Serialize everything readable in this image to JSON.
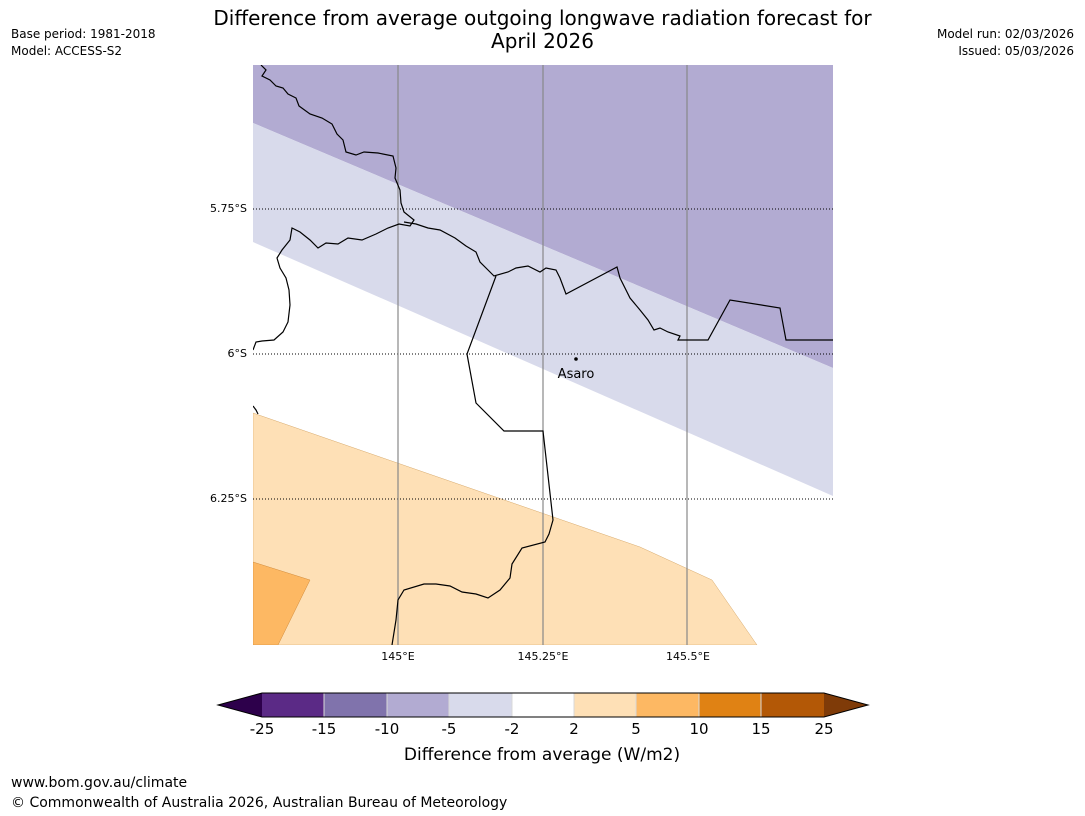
{
  "header": {
    "title_line1": "Difference from average outgoing longwave radiation forecast for",
    "title_line2": "April 2026",
    "base_period": "Base period: 1981-2018",
    "model": "Model: ACCESS-S2",
    "model_run": "Model run: 02/03/2026",
    "issued": "Issued: 05/03/2026"
  },
  "map": {
    "lat_labels": [
      "5.75°S",
      "6°S",
      "6.25°S"
    ],
    "lon_labels": [
      "145°E",
      "145.25°E",
      "145.5°E"
    ],
    "place": {
      "name": "Asaro"
    },
    "colors": {
      "m25_m15": "#5b2a86",
      "m15_m10": "#8073ac",
      "m10_m5": "#b2abd2",
      "m5_m2": "#d8daeb",
      "m2_p2": "#ffffff",
      "p2_p5": "#fee0b6",
      "p5_p10": "#fdb863",
      "p10_p15": "#e08214",
      "p15_p25": "#b35806",
      "under": "#2d004b",
      "over": "#7f3b08"
    }
  },
  "colorbar": {
    "ticks": [
      "-25",
      "-15",
      "-10",
      "-5",
      "-2",
      "2",
      "5",
      "10",
      "15",
      "25"
    ],
    "title": "Difference from average (W/m2)"
  },
  "footer": {
    "url": "www.bom.gov.au/climate",
    "copyright": "© Commonwealth of Australia 2026, Australian Bureau of Meteorology"
  }
}
